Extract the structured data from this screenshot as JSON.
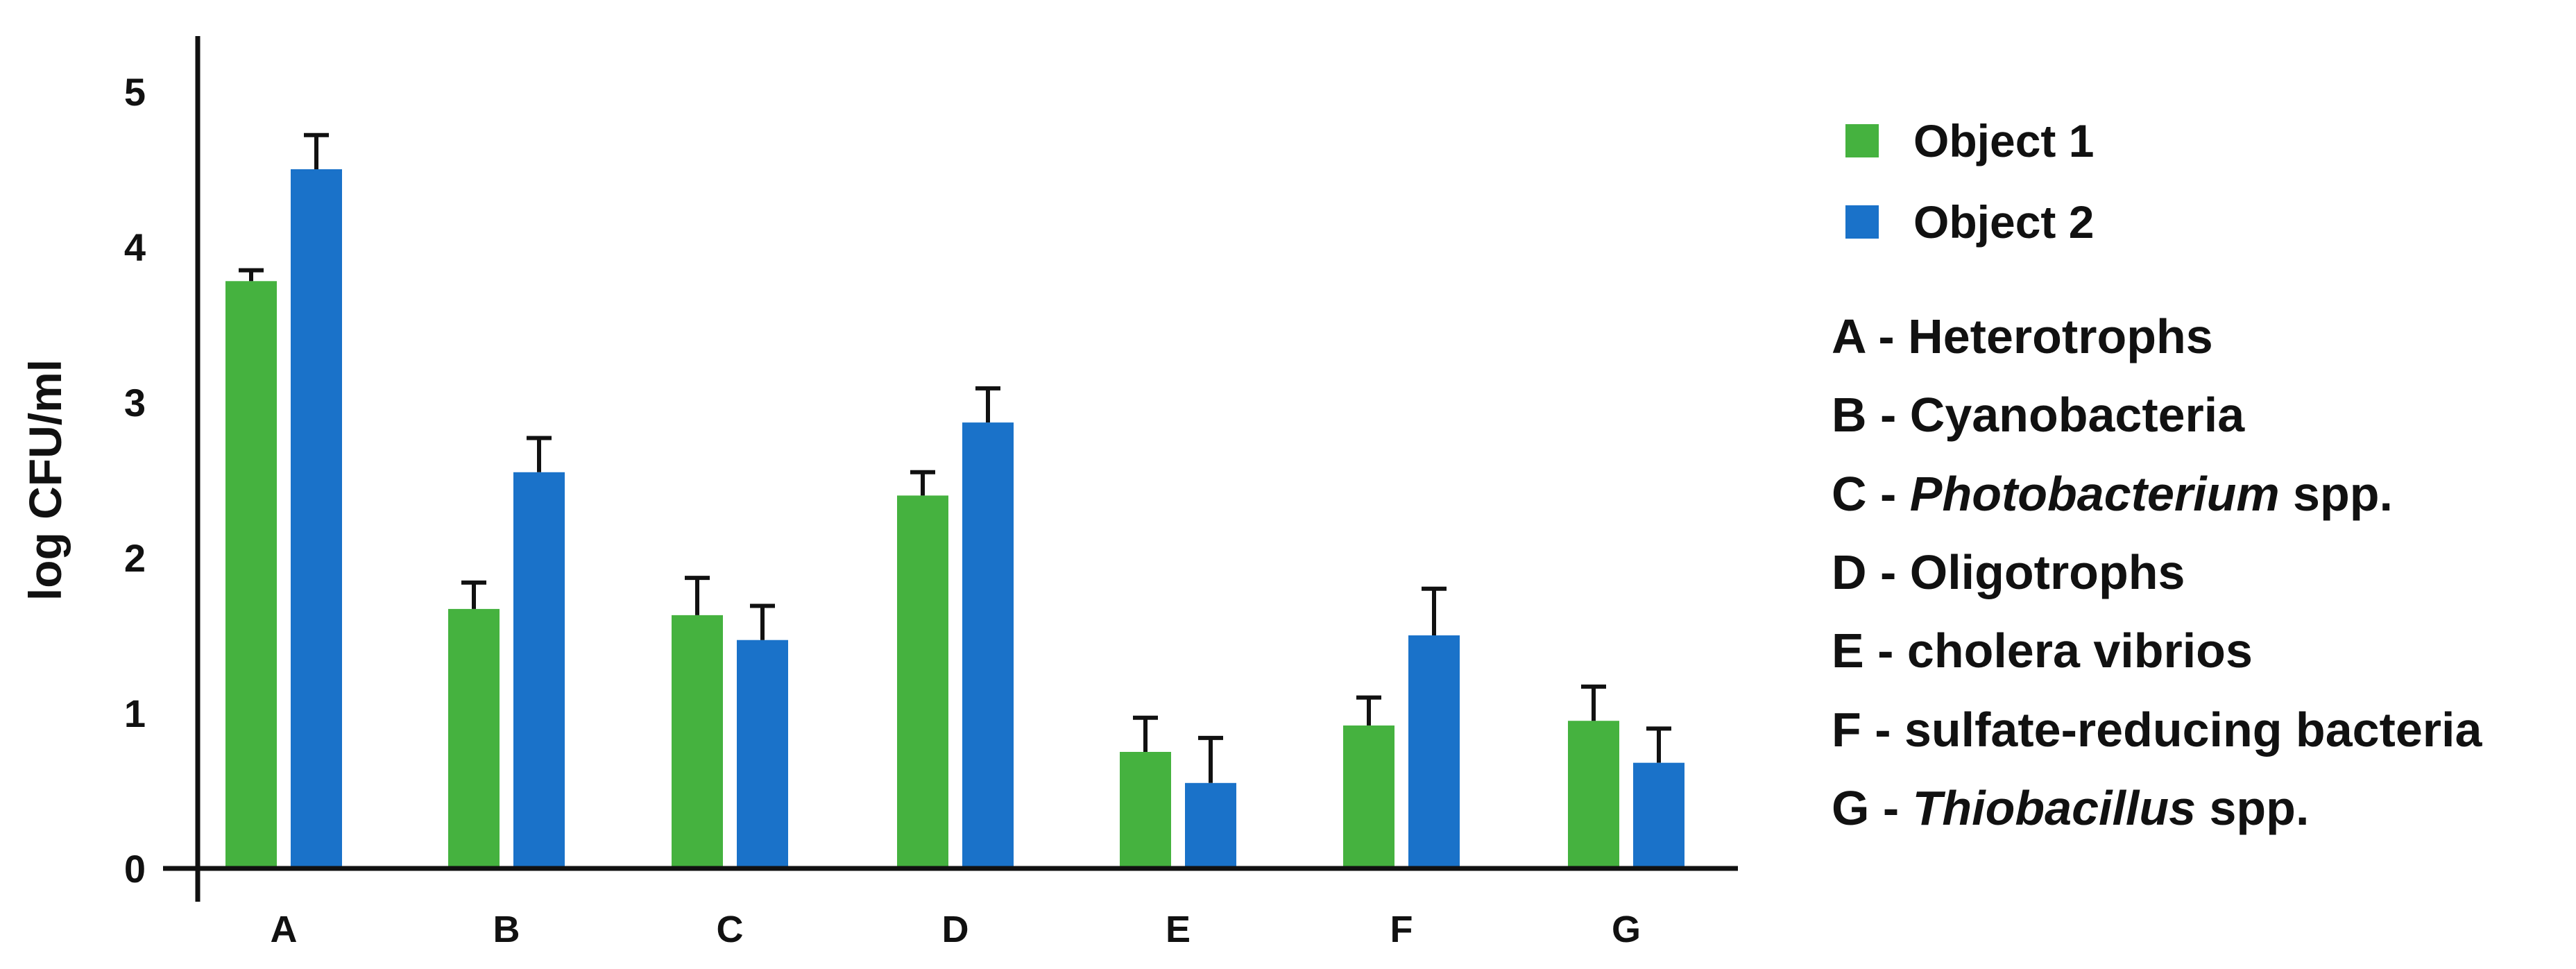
{
  "chart_data": {
    "type": "bar",
    "title": "",
    "xlabel": "",
    "ylabel": "log CFU/ml",
    "ylim": [
      0,
      5
    ],
    "yticks": [
      0,
      1,
      2,
      3,
      4,
      5
    ],
    "grid": false,
    "legend_position": "right",
    "categories": [
      "A",
      "B",
      "C",
      "D",
      "E",
      "F",
      "G"
    ],
    "series": [
      {
        "name": "Object 1",
        "color": "#45b23f",
        "values": [
          3.78,
          1.67,
          1.63,
          2.4,
          0.75,
          0.92,
          0.95
        ],
        "errors": [
          0.07,
          0.17,
          0.24,
          0.15,
          0.22,
          0.18,
          0.22
        ]
      },
      {
        "name": "Object 2",
        "color": "#1a72c9",
        "values": [
          4.5,
          2.55,
          1.47,
          2.87,
          0.55,
          1.5,
          0.68
        ],
        "errors": [
          0.22,
          0.22,
          0.22,
          0.22,
          0.29,
          0.3,
          0.22
        ]
      }
    ]
  },
  "legend": {
    "series_labels": [
      "Object 1",
      "Object 2"
    ],
    "items": [
      {
        "prefix": "A - ",
        "italic": "",
        "suffix": "Heterotrophs"
      },
      {
        "prefix": "B - ",
        "italic": "",
        "suffix": "Cyanobacteria"
      },
      {
        "prefix": "C - ",
        "italic": "Photobacterium",
        "suffix": " spp."
      },
      {
        "prefix": "D - ",
        "italic": "",
        "suffix": "Oligotrophs"
      },
      {
        "prefix": "E - ",
        "italic": "",
        "suffix": "cholera vibrios"
      },
      {
        "prefix": "F - ",
        "italic": "",
        "suffix": "sulfate-reducing bacteria"
      },
      {
        "prefix": "G - ",
        "italic": "Thiobacillus",
        "suffix": " spp."
      }
    ]
  }
}
